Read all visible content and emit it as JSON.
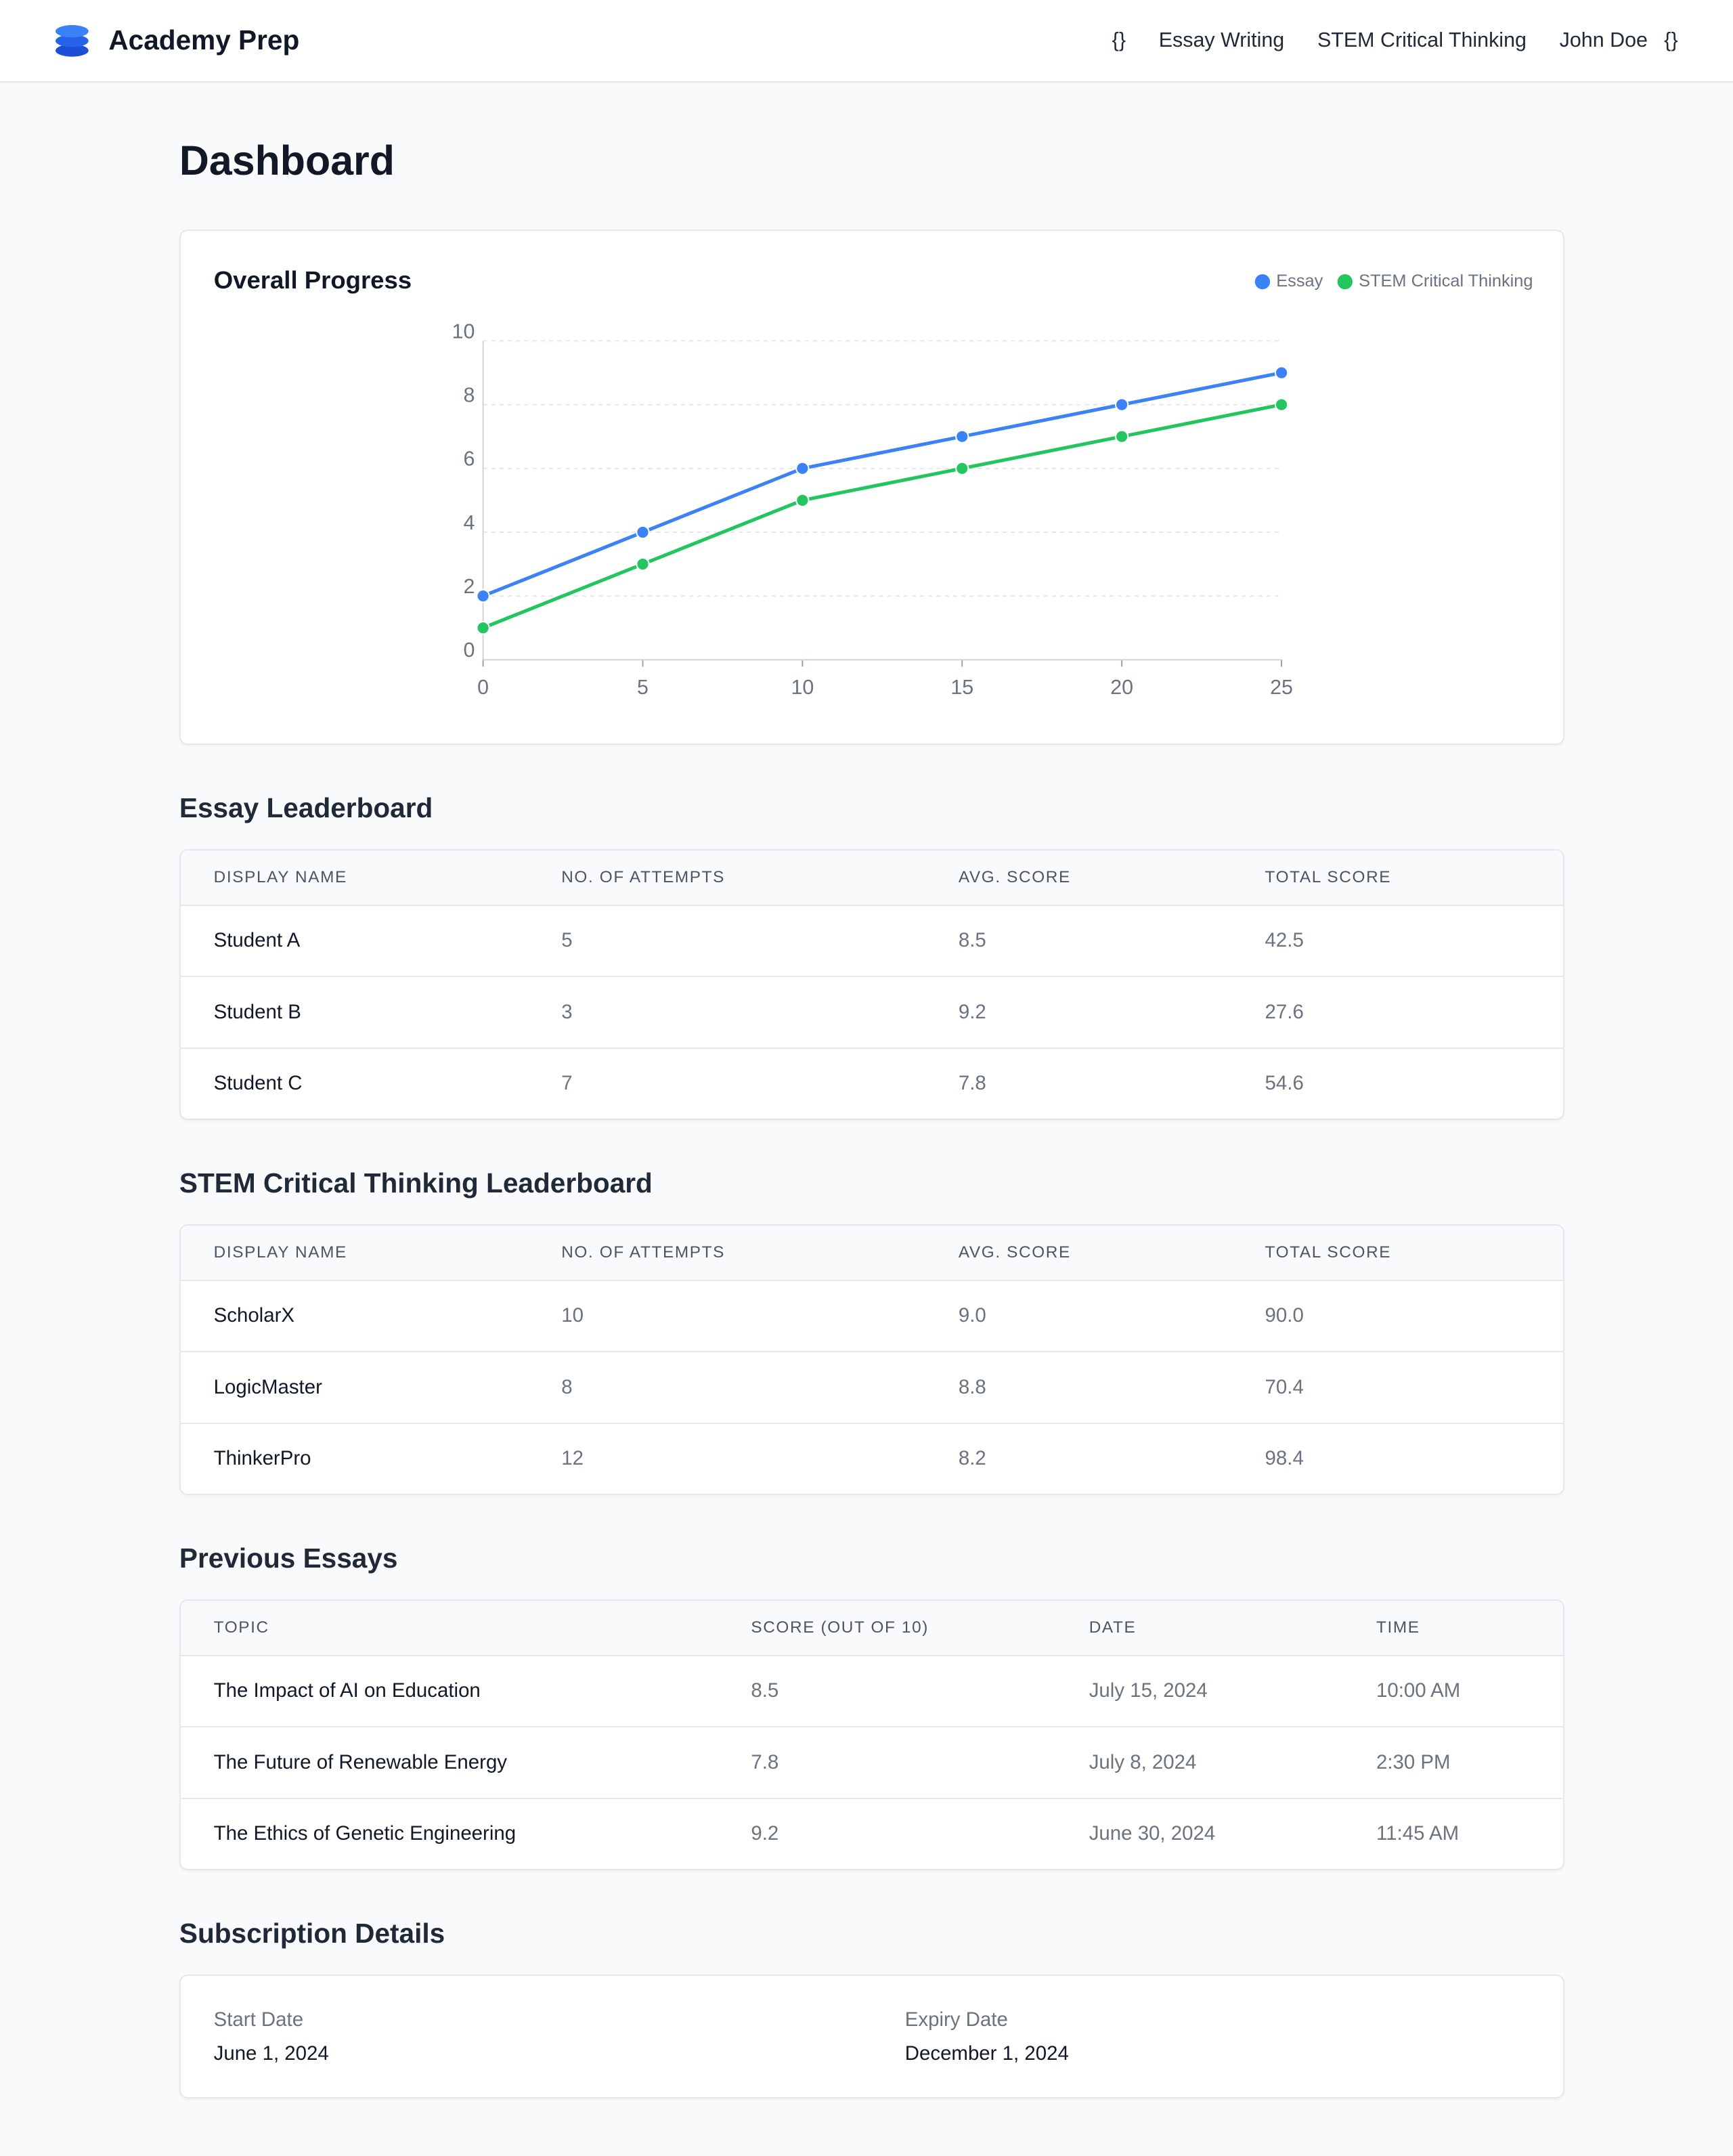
{
  "header": {
    "brand": "Academy Prep",
    "nav": [
      "{}",
      "Essay Writing",
      "STEM Critical Thinking",
      "John Doe",
      "{}"
    ]
  },
  "page_title": "Dashboard",
  "chart_data": {
    "type": "line",
    "title": "Overall Progress",
    "x": [
      0,
      5,
      10,
      15,
      20,
      25
    ],
    "series": [
      {
        "name": "Essay",
        "color": "#3b82f6",
        "values": [
          2,
          4,
          6,
          7,
          8,
          9
        ]
      },
      {
        "name": "STEM Critical Thinking",
        "color": "#22c55e",
        "values": [
          1,
          3,
          5,
          6,
          7,
          8
        ]
      }
    ],
    "xlim": [
      0,
      25
    ],
    "ylim": [
      0,
      10
    ],
    "xticks": [
      0,
      5,
      10,
      15,
      20,
      25
    ],
    "yticks": [
      0,
      2,
      4,
      6,
      8,
      10
    ],
    "grid": true,
    "legend": "top-right"
  },
  "essay_leaderboard": {
    "title": "Essay Leaderboard",
    "columns": [
      "Display Name",
      "No. of Attempts",
      "Avg. Score",
      "Total Score"
    ],
    "rows": [
      [
        "Student A",
        "5",
        "8.5",
        "42.5"
      ],
      [
        "Student B",
        "3",
        "9.2",
        "27.6"
      ],
      [
        "Student C",
        "7",
        "7.8",
        "54.6"
      ]
    ]
  },
  "stem_leaderboard": {
    "title": "STEM Critical Thinking Leaderboard",
    "columns": [
      "Display Name",
      "No. of Attempts",
      "Avg. Score",
      "Total Score"
    ],
    "rows": [
      [
        "ScholarX",
        "10",
        "9.0",
        "90.0"
      ],
      [
        "LogicMaster",
        "8",
        "8.8",
        "70.4"
      ],
      [
        "ThinkerPro",
        "12",
        "8.2",
        "98.4"
      ]
    ]
  },
  "previous_essays": {
    "title": "Previous Essays",
    "columns": [
      "Topic",
      "Score (out of 10)",
      "Date",
      "Time"
    ],
    "rows": [
      [
        "The Impact of AI on Education",
        "8.5",
        "July 15, 2024",
        "10:00 AM"
      ],
      [
        "The Future of Renewable Energy",
        "7.8",
        "July 8, 2024",
        "2:30 PM"
      ],
      [
        "The Ethics of Genetic Engineering",
        "9.2",
        "June 30, 2024",
        "11:45 AM"
      ]
    ]
  },
  "subscription": {
    "title": "Subscription Details",
    "fields": [
      {
        "label": "Start Date",
        "value": "June 1, 2024"
      },
      {
        "label": "Expiry Date",
        "value": "December 1, 2024"
      }
    ]
  }
}
